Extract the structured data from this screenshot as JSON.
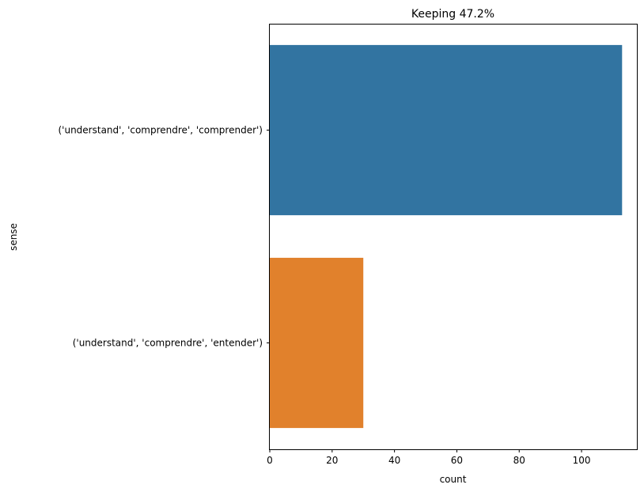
{
  "chart_data": {
    "type": "bar",
    "orientation": "horizontal",
    "title": "Keeping 47.2%",
    "xlabel": "count",
    "ylabel": "sense",
    "categories": [
      "('understand', 'comprendre', 'comprender')",
      "('understand', 'comprendre', 'entender')"
    ],
    "values": [
      113,
      30
    ],
    "colors": [
      "#3274a1",
      "#e1812c"
    ],
    "xlim": [
      0,
      118
    ],
    "xticks": [
      0,
      20,
      40,
      60,
      80,
      100
    ],
    "grid": false,
    "legend": "none"
  }
}
